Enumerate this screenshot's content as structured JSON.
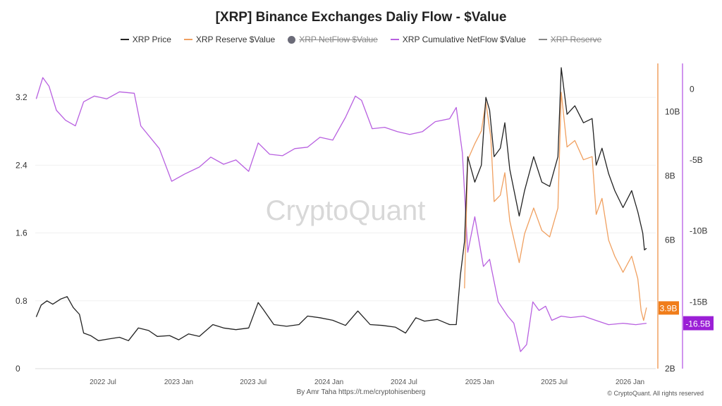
{
  "chart_data": {
    "type": "line",
    "title": "[XRP] Binance Exchanges Daliy Flow - $Value",
    "legend": {
      "placement": "top",
      "items": [
        {
          "name": "XRP Price",
          "color": "#222222",
          "hidden": false
        },
        {
          "name": "XRP Reserve $Value",
          "color": "#f0a060",
          "hidden": false
        },
        {
          "name": "XRP NetFlow $Value",
          "color": "#6b6b78",
          "hidden": true
        },
        {
          "name": "XRP Cumulative NetFlow $Value",
          "color": "#b860e0",
          "hidden": false
        },
        {
          "name": "XRP Reserve",
          "color": "#888888",
          "hidden": true
        }
      ]
    },
    "x_ticks": [
      "2022 Jul",
      "2023 Jan",
      "2023 Jul",
      "2024 Jan",
      "2024 Jul",
      "2025 Jan",
      "2025 Jul",
      "2026 Jan"
    ],
    "x_range": [
      "2022-01-20",
      "2026-02-10"
    ],
    "y_left": {
      "ticks": [
        "0",
        "0.8",
        "1.6",
        "2.4",
        "3.2"
      ],
      "range": [
        0,
        3.6
      ]
    },
    "y_right_reserve": {
      "ticks": [
        "2B",
        "6B",
        "8B",
        "10B"
      ],
      "range": [
        2,
        11.5
      ],
      "last_label": "3.9B",
      "color": "#f07d1a"
    },
    "y_right_cumulative": {
      "ticks": [
        "0",
        "-5B",
        "-10B",
        "-15B"
      ],
      "range": [
        -19.7,
        1.8
      ],
      "last_label": "-16.5B",
      "color": "#9b1fd6"
    },
    "grid": true,
    "watermark": "CryptoQuant",
    "series": [
      {
        "name": "XRP Price",
        "axis": "left",
        "color": "#222222",
        "points": [
          [
            "2022-01-20",
            0.61
          ],
          [
            "2022-02-01",
            0.75
          ],
          [
            "2022-02-15",
            0.8
          ],
          [
            "2022-03-01",
            0.76
          ],
          [
            "2022-03-20",
            0.82
          ],
          [
            "2022-04-05",
            0.85
          ],
          [
            "2022-04-20",
            0.72
          ],
          [
            "2022-05-05",
            0.64
          ],
          [
            "2022-05-15",
            0.42
          ],
          [
            "2022-06-01",
            0.39
          ],
          [
            "2022-06-20",
            0.33
          ],
          [
            "2022-07-15",
            0.35
          ],
          [
            "2022-08-10",
            0.37
          ],
          [
            "2022-09-01",
            0.33
          ],
          [
            "2022-09-25",
            0.48
          ],
          [
            "2022-10-20",
            0.45
          ],
          [
            "2022-11-10",
            0.38
          ],
          [
            "2022-12-10",
            0.39
          ],
          [
            "2023-01-01",
            0.34
          ],
          [
            "2023-01-25",
            0.41
          ],
          [
            "2023-02-20",
            0.38
          ],
          [
            "2023-03-25",
            0.52
          ],
          [
            "2023-04-20",
            0.48
          ],
          [
            "2023-05-20",
            0.46
          ],
          [
            "2023-06-20",
            0.48
          ],
          [
            "2023-07-13",
            0.78
          ],
          [
            "2023-07-25",
            0.7
          ],
          [
            "2023-08-20",
            0.52
          ],
          [
            "2023-09-20",
            0.5
          ],
          [
            "2023-10-20",
            0.52
          ],
          [
            "2023-11-10",
            0.62
          ],
          [
            "2023-12-10",
            0.6
          ],
          [
            "2024-01-10",
            0.57
          ],
          [
            "2024-02-10",
            0.51
          ],
          [
            "2024-03-11",
            0.68
          ],
          [
            "2024-04-10",
            0.52
          ],
          [
            "2024-05-10",
            0.51
          ],
          [
            "2024-06-10",
            0.49
          ],
          [
            "2024-07-05",
            0.42
          ],
          [
            "2024-07-30",
            0.6
          ],
          [
            "2024-08-20",
            0.56
          ],
          [
            "2024-09-20",
            0.58
          ],
          [
            "2024-10-20",
            0.52
          ],
          [
            "2024-11-05",
            0.52
          ],
          [
            "2024-11-15",
            1.1
          ],
          [
            "2024-11-25",
            1.5
          ],
          [
            "2024-12-03",
            2.5
          ],
          [
            "2024-12-20",
            2.2
          ],
          [
            "2025-01-05",
            2.4
          ],
          [
            "2025-01-16",
            3.2
          ],
          [
            "2025-01-25",
            3.05
          ],
          [
            "2025-02-05",
            2.5
          ],
          [
            "2025-02-20",
            2.6
          ],
          [
            "2025-03-03",
            2.9
          ],
          [
            "2025-03-15",
            2.35
          ],
          [
            "2025-04-07",
            1.8
          ],
          [
            "2025-04-20",
            2.1
          ],
          [
            "2025-05-12",
            2.5
          ],
          [
            "2025-06-01",
            2.2
          ],
          [
            "2025-06-20",
            2.15
          ],
          [
            "2025-07-10",
            2.5
          ],
          [
            "2025-07-18",
            3.55
          ],
          [
            "2025-08-01",
            3.0
          ],
          [
            "2025-08-20",
            3.1
          ],
          [
            "2025-09-10",
            2.9
          ],
          [
            "2025-10-01",
            2.95
          ],
          [
            "2025-10-11",
            2.4
          ],
          [
            "2025-10-25",
            2.6
          ],
          [
            "2025-11-10",
            2.3
          ],
          [
            "2025-11-25",
            2.1
          ],
          [
            "2025-12-15",
            1.9
          ],
          [
            "2026-01-05",
            2.1
          ],
          [
            "2026-01-20",
            1.85
          ],
          [
            "2026-02-01",
            1.6
          ],
          [
            "2026-02-05",
            1.4
          ],
          [
            "2026-02-10",
            1.42
          ]
        ]
      },
      {
        "name": "XRP Reserve $Value",
        "axis": "reserve",
        "color": "#f0a060",
        "points": [
          [
            "2024-11-25",
            4.5
          ],
          [
            "2024-12-03",
            8.5
          ],
          [
            "2024-12-20",
            9.0
          ],
          [
            "2025-01-05",
            9.4
          ],
          [
            "2025-01-16",
            10.3
          ],
          [
            "2025-01-28",
            9.2
          ],
          [
            "2025-02-05",
            7.2
          ],
          [
            "2025-02-20",
            7.4
          ],
          [
            "2025-03-03",
            8.1
          ],
          [
            "2025-03-15",
            6.6
          ],
          [
            "2025-04-07",
            5.3
          ],
          [
            "2025-04-20",
            6.2
          ],
          [
            "2025-05-12",
            7.0
          ],
          [
            "2025-06-01",
            6.3
          ],
          [
            "2025-06-20",
            6.1
          ],
          [
            "2025-07-10",
            7.0
          ],
          [
            "2025-07-18",
            10.6
          ],
          [
            "2025-08-01",
            8.9
          ],
          [
            "2025-08-20",
            9.1
          ],
          [
            "2025-09-10",
            8.5
          ],
          [
            "2025-10-01",
            8.6
          ],
          [
            "2025-10-11",
            6.8
          ],
          [
            "2025-10-25",
            7.3
          ],
          [
            "2025-11-10",
            6.0
          ],
          [
            "2025-11-25",
            5.5
          ],
          [
            "2025-12-15",
            5.0
          ],
          [
            "2026-01-05",
            5.5
          ],
          [
            "2026-01-20",
            4.8
          ],
          [
            "2026-01-28",
            3.8
          ],
          [
            "2026-02-03",
            3.5
          ],
          [
            "2026-02-10",
            3.9
          ]
        ]
      },
      {
        "name": "XRP Cumulative NetFlow $Value",
        "axis": "cumulative",
        "color": "#b860e0",
        "points": [
          [
            "2022-01-20",
            -0.7
          ],
          [
            "2022-02-05",
            0.8
          ],
          [
            "2022-02-20",
            0.2
          ],
          [
            "2022-03-10",
            -1.5
          ],
          [
            "2022-04-01",
            -2.2
          ],
          [
            "2022-04-25",
            -2.6
          ],
          [
            "2022-05-15",
            -0.9
          ],
          [
            "2022-06-10",
            -0.5
          ],
          [
            "2022-07-10",
            -0.7
          ],
          [
            "2022-08-10",
            -0.2
          ],
          [
            "2022-09-15",
            -0.3
          ],
          [
            "2022-10-01",
            -2.6
          ],
          [
            "2022-11-15",
            -4.2
          ],
          [
            "2022-12-15",
            -6.5
          ],
          [
            "2023-01-15",
            -6.0
          ],
          [
            "2023-02-20",
            -5.5
          ],
          [
            "2023-03-20",
            -4.8
          ],
          [
            "2023-04-20",
            -5.3
          ],
          [
            "2023-05-20",
            -5.0
          ],
          [
            "2023-06-20",
            -5.8
          ],
          [
            "2023-07-13",
            -3.8
          ],
          [
            "2023-08-10",
            -4.6
          ],
          [
            "2023-09-10",
            -4.7
          ],
          [
            "2023-10-10",
            -4.2
          ],
          [
            "2023-11-10",
            -4.1
          ],
          [
            "2023-12-10",
            -3.4
          ],
          [
            "2024-01-10",
            -3.6
          ],
          [
            "2024-02-10",
            -2.0
          ],
          [
            "2024-03-05",
            -0.5
          ],
          [
            "2024-03-20",
            -0.8
          ],
          [
            "2024-04-15",
            -2.8
          ],
          [
            "2024-05-15",
            -2.7
          ],
          [
            "2024-06-15",
            -3.0
          ],
          [
            "2024-07-15",
            -3.2
          ],
          [
            "2024-08-15",
            -3.0
          ],
          [
            "2024-09-15",
            -2.3
          ],
          [
            "2024-10-20",
            -2.1
          ],
          [
            "2024-11-05",
            -1.3
          ],
          [
            "2024-11-20",
            -4.5
          ],
          [
            "2024-12-03",
            -11.5
          ],
          [
            "2024-12-20",
            -9.0
          ],
          [
            "2025-01-10",
            -12.5
          ],
          [
            "2025-01-25",
            -12.0
          ],
          [
            "2025-02-15",
            -15.0
          ],
          [
            "2025-03-10",
            -16.0
          ],
          [
            "2025-03-25",
            -16.5
          ],
          [
            "2025-04-10",
            -18.5
          ],
          [
            "2025-04-25",
            -18.0
          ],
          [
            "2025-05-10",
            -15.0
          ],
          [
            "2025-05-25",
            -15.6
          ],
          [
            "2025-06-10",
            -15.3
          ],
          [
            "2025-06-25",
            -16.3
          ],
          [
            "2025-07-18",
            -16.0
          ],
          [
            "2025-08-10",
            -16.1
          ],
          [
            "2025-09-10",
            -16.0
          ],
          [
            "2025-10-10",
            -16.3
          ],
          [
            "2025-11-10",
            -16.6
          ],
          [
            "2025-12-15",
            -16.5
          ],
          [
            "2026-01-15",
            -16.6
          ],
          [
            "2026-02-10",
            -16.5
          ]
        ]
      }
    ]
  },
  "footer": {
    "by": "By Amr Taha",
    "link": "https://t.me/cryptohisenberg",
    "copyright": "© CryptoQuant. All rights reserved"
  }
}
